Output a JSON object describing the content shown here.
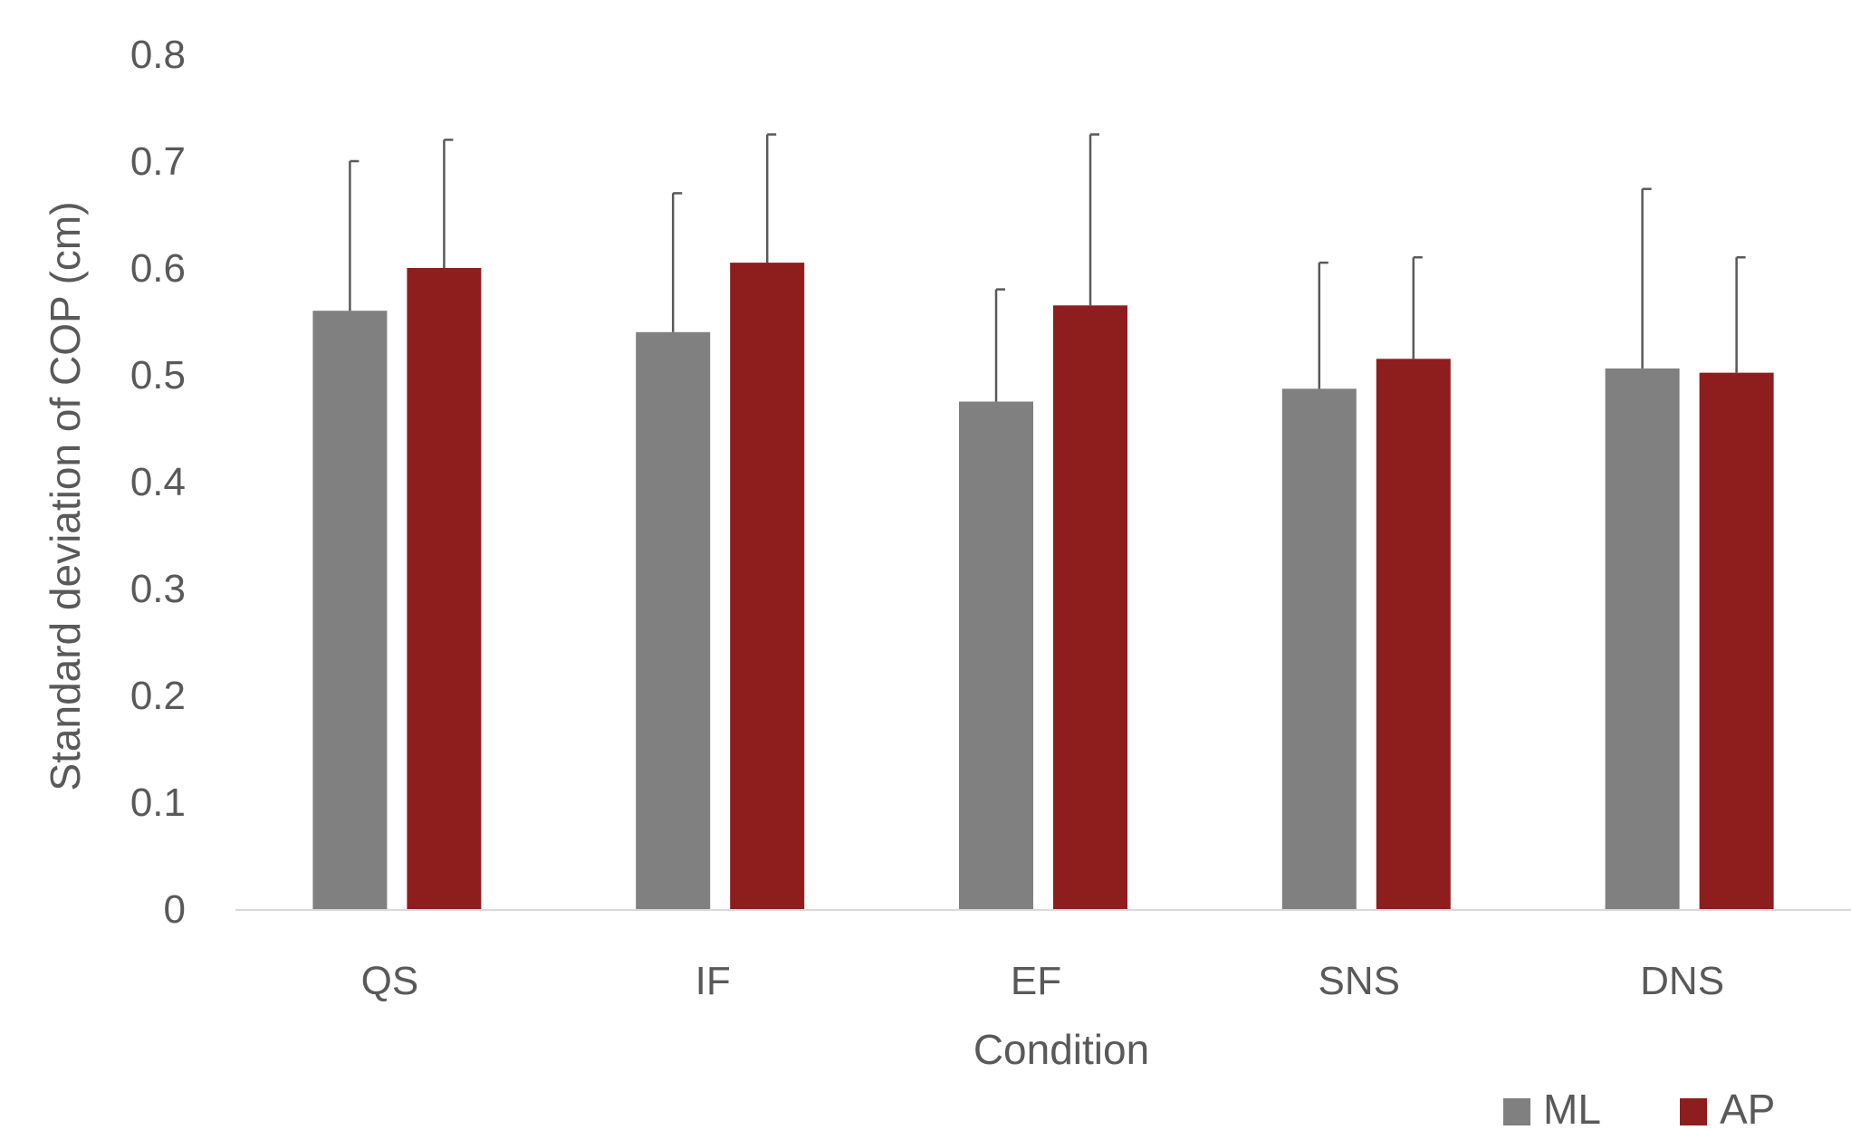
{
  "chart_data": {
    "type": "bar",
    "title": "",
    "xlabel": "Condition",
    "ylabel": "Standard deviation of COP (cm)",
    "ylim": [
      0,
      0.8
    ],
    "yticks": [
      "0",
      "0.1",
      "0.2",
      "0.3",
      "0.4",
      "0.5",
      "0.6",
      "0.7",
      "0.8"
    ],
    "grid": false,
    "legend_position": "bottom-right",
    "categories": [
      "QS",
      "IF",
      "EF",
      "SNS",
      "DNS"
    ],
    "series": [
      {
        "name": "ML",
        "color": "#808080",
        "values": [
          0.56,
          0.54,
          0.475,
          0.487,
          0.506
        ],
        "error_upper": [
          0.14,
          0.13,
          0.105,
          0.118,
          0.168
        ]
      },
      {
        "name": "AP",
        "color": "#8E1D1D",
        "values": [
          0.6,
          0.605,
          0.565,
          0.515,
          0.502
        ],
        "error_upper": [
          0.12,
          0.12,
          0.16,
          0.095,
          0.108
        ]
      }
    ]
  }
}
